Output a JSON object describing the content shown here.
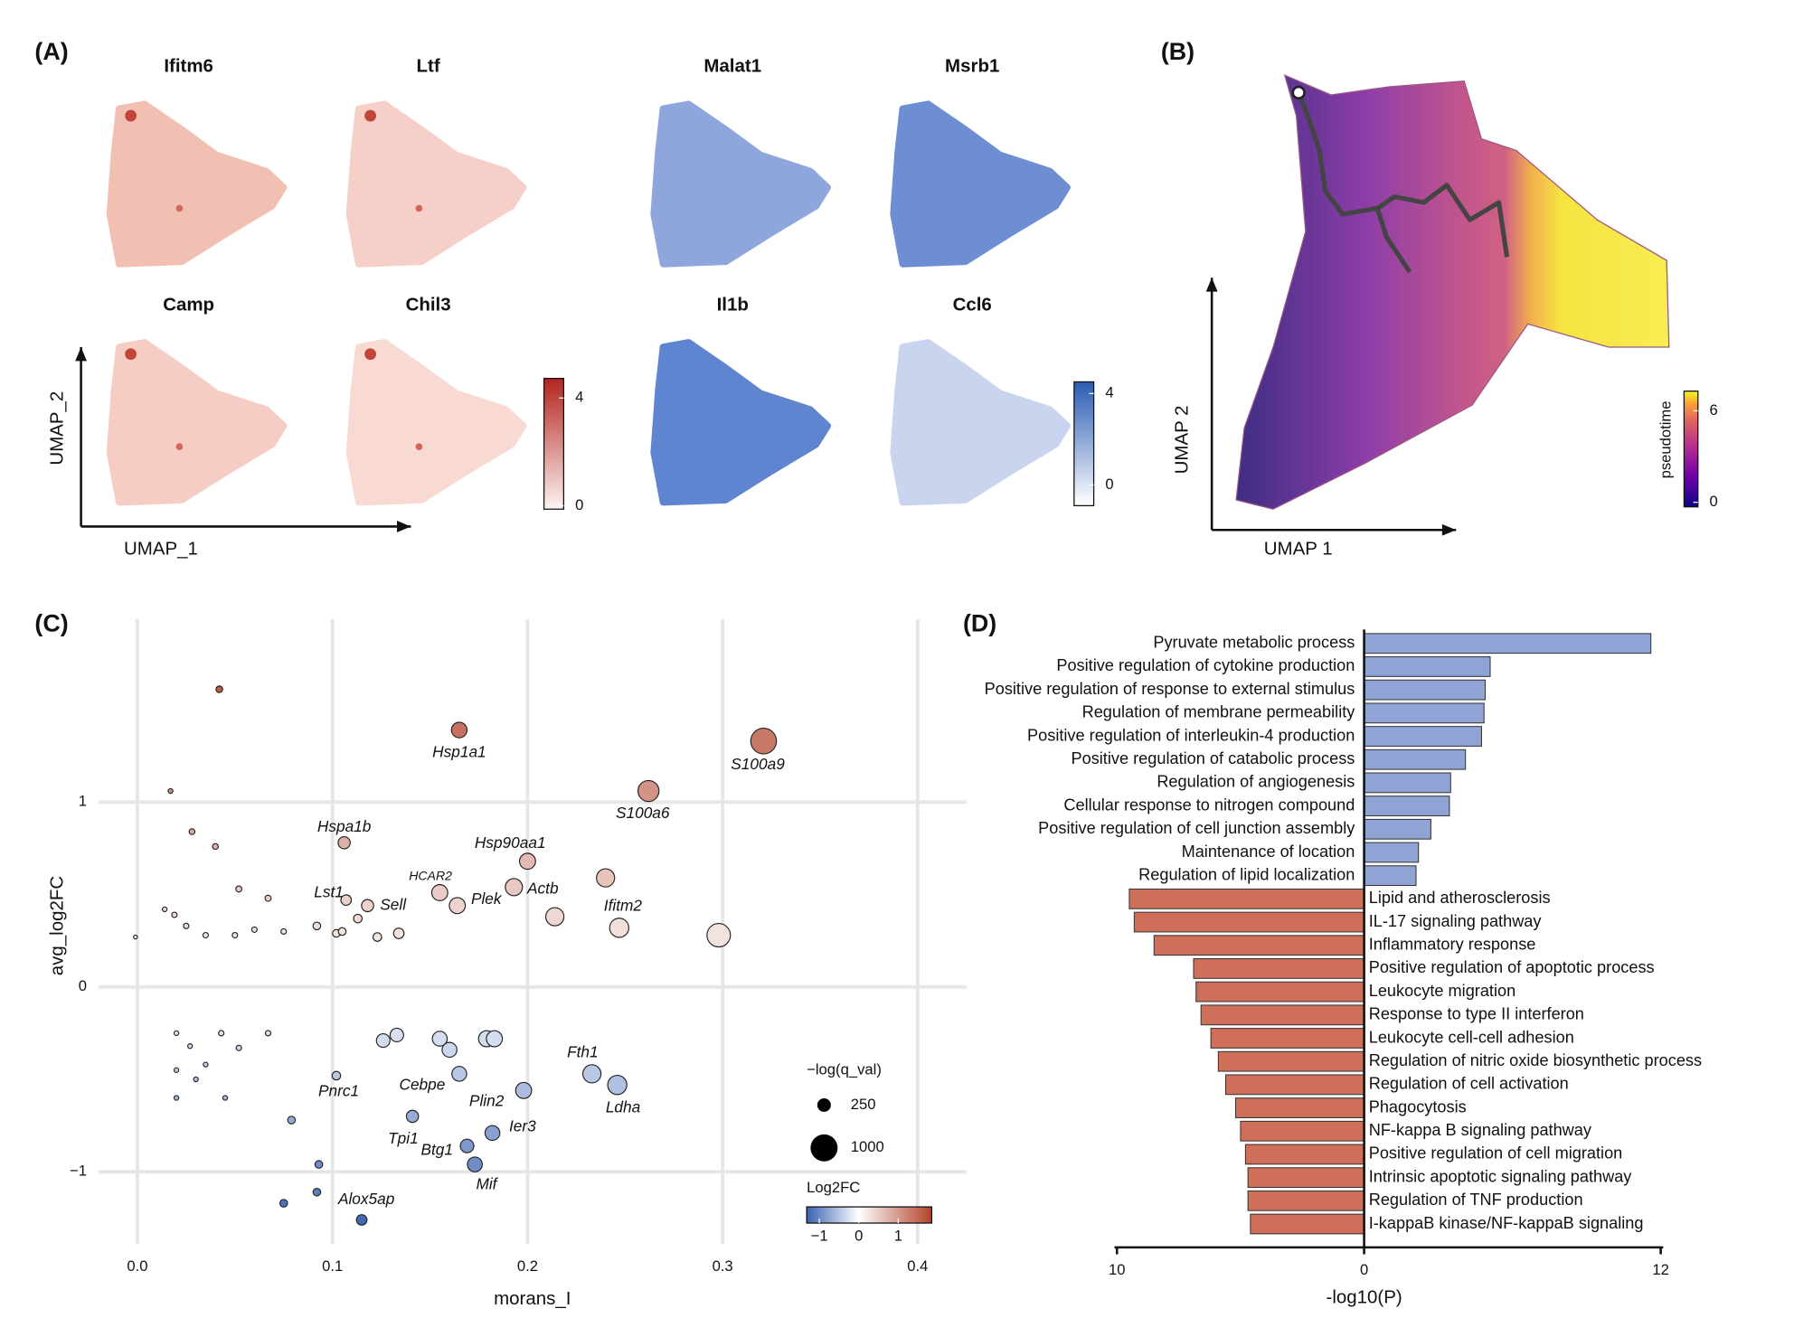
{
  "chart_data": [
    {
      "type": "embedding",
      "panel": "(A)",
      "xlabel": "UMAP_1",
      "ylabel": "UMAP_2",
      "features": [
        "Ifitm6",
        "Ltf",
        "Camp",
        "Chil3"
      ],
      "colors": [
        "#fdf3f1",
        "#b2251f"
      ],
      "colorbar_lim": [
        -0.13,
        4.73
      ],
      "colorbar_ticks": [
        0,
        4
      ]
    },
    {
      "type": "embedding",
      "features": [
        "Malat1",
        "Msrb1",
        "Il1b",
        "Ccl6"
      ],
      "colors": [
        "#ffffff",
        "#2b5cb3"
      ],
      "colorbar_lim": [
        -0.91,
        4.51
      ],
      "colorbar_ticks": [
        0,
        4
      ]
    },
    {
      "type": "trajectory",
      "panel": "(B)",
      "xlabel": "UMAP 1",
      "ylabel": "UMAP 2",
      "colorbar_title": "pseudotime",
      "colorbar_lim": [
        -0.3,
        7.29
      ],
      "colorbar_ticks": [
        0,
        6
      ]
    },
    {
      "type": "scatter",
      "panel": "(C)",
      "xlabel": "morans_I",
      "ylabel": "avg_log2FC",
      "xlim": [
        -0.02,
        0.425
      ],
      "ylim": [
        -1.39,
        1.99
      ],
      "xticks": [
        {
          "value": 0,
          "label": "0.0"
        },
        0.1,
        0.2,
        0.3,
        0.4
      ],
      "yticks": [
        {
          "value": -1,
          "label": "−1"
        },
        0,
        1
      ],
      "grid": true,
      "x": [
        0.042,
        0.165,
        0.321,
        0.262,
        0.017,
        0.028,
        0.04,
        0.106,
        0.2,
        0.155,
        0.164,
        0.193,
        0.24,
        0.107,
        0.118,
        0.214,
        0.247,
        0.298,
        -0.001,
        0.019,
        0.025,
        0.035,
        0.05,
        0.06,
        0.067,
        0.075,
        0.092,
        0.102,
        0.113,
        0.123,
        0.134,
        0.052,
        0.014,
        0.105,
        0.126,
        0.133,
        0.155,
        0.16,
        0.179,
        0.183,
        0.165,
        0.102,
        0.198,
        0.233,
        0.246,
        0.141,
        0.182,
        0.169,
        0.173,
        0.079,
        0.093,
        0.092,
        0.075,
        0.115,
        0.02,
        0.027,
        0.035,
        0.043,
        0.052,
        0.067,
        0.02,
        0.02,
        0.045,
        0.03
      ],
      "values": [
        1.61,
        1.39,
        1.33,
        1.06,
        1.06,
        0.84,
        0.76,
        0.78,
        0.68,
        0.51,
        0.44,
        0.54,
        0.59,
        0.47,
        0.44,
        0.38,
        0.32,
        0.28,
        0.27,
        0.39,
        0.33,
        0.28,
        0.28,
        0.31,
        0.48,
        0.3,
        0.33,
        0.29,
        0.37,
        0.27,
        0.29,
        0.53,
        0.42,
        0.3,
        -0.29,
        -0.26,
        -0.28,
        -0.34,
        -0.28,
        -0.28,
        -0.47,
        -0.48,
        -0.56,
        -0.47,
        -0.53,
        -0.7,
        -0.79,
        -0.86,
        -0.96,
        -0.72,
        -0.96,
        -1.11,
        -1.17,
        -1.26,
        -0.25,
        -0.32,
        -0.42,
        -0.25,
        -0.33,
        -0.25,
        -0.45,
        -0.6,
        -0.6,
        -0.5
      ],
      "sizes": [
        60,
        330,
        900,
        600,
        30,
        45,
        45,
        200,
        350,
        350,
        350,
        400,
        450,
        150,
        200,
        450,
        500,
        750,
        20,
        40,
        40,
        40,
        40,
        40,
        50,
        40,
        80,
        80,
        100,
        100,
        150,
        50,
        30,
        80,
        250,
        250,
        300,
        300,
        350,
        350,
        300,
        100,
        350,
        450,
        500,
        200,
        300,
        250,
        300,
        80,
        80,
        80,
        80,
        150,
        30,
        30,
        30,
        40,
        40,
        40,
        30,
        30,
        30,
        30
      ],
      "labels": [
        null,
        "Hsp1a1",
        "S100a9",
        "S100a6",
        null,
        null,
        null,
        "Hspa1b",
        "Hsp90aa1",
        "HCAR2",
        "Plek",
        "Actb",
        "Ifitm2",
        "Lst1",
        "Sell",
        null,
        null,
        null,
        null,
        null,
        null,
        null,
        null,
        null,
        null,
        null,
        null,
        null,
        null,
        null,
        null,
        null,
        null,
        null,
        null,
        null,
        null,
        null,
        null,
        null,
        "Cebpe",
        "Pnrc1",
        "Plin2",
        "Fth1",
        "Ldha",
        "Tpi1",
        "Ier3",
        "Btg1",
        "Mif",
        null,
        null,
        null,
        null,
        "Alox5ap",
        null,
        null,
        null,
        null,
        null,
        null,
        null,
        null,
        null,
        null
      ],
      "size_legend_title": "−log(q_val)",
      "size_legend": [
        250,
        1000
      ],
      "color_legend_title": "Log2FC",
      "color_lim": [
        -1.32,
        1.85
      ],
      "color_ticks": [
        {
          "value": -1,
          "label": "−1"
        },
        0,
        1
      ],
      "colors": [
        "#3a62b3",
        "#ffffff",
        "#b3432c"
      ]
    },
    {
      "type": "bar",
      "panel": "(D)",
      "xlabel": "-log10(P)",
      "xlim": [
        -10.1,
        12.1
      ],
      "xticks": [
        {
          "value": -10,
          "label": "10"
        },
        0,
        12
      ],
      "positive_color": "#8fa3d4",
      "negative_color": "#cf6f5a",
      "categories": [
        "Pyruvate metabolic process",
        "Positive regulation of cytokine production",
        "Positive regulation of response to external stimulus",
        "Regulation of membrane permeability",
        "Positive regulation of interleukin-4 production",
        "Positive regulation of catabolic process",
        "Regulation of angiogenesis",
        "Cellular response to nitrogen compound",
        "Positive regulation of cell junction assembly",
        "Maintenance of location",
        "Regulation of lipid localization",
        "Lipid and atherosclerosis",
        "IL-17 signaling pathway",
        "Inflammatory response",
        "Positive regulation of apoptotic process",
        "Leukocyte migration",
        "Response to type II interferon",
        "Leukocyte cell-cell adhesion",
        "Regulation of nitric oxide biosynthetic process",
        "Regulation of cell activation",
        "Phagocytosis",
        "NF-kappa B signaling pathway",
        "Positive regulation of cell migration",
        "Intrinsic apoptotic signaling pathway",
        "Regulation of TNF production",
        "I-kappaB kinase/NF-kappaB signaling"
      ],
      "values": [
        11.6,
        5.1,
        4.9,
        4.85,
        4.75,
        4.1,
        3.5,
        3.45,
        2.7,
        2.2,
        2.1,
        -9.5,
        -9.3,
        -8.5,
        -6.9,
        -6.8,
        -6.6,
        -6.2,
        -5.9,
        -5.6,
        -5.2,
        -5.0,
        -4.8,
        -4.7,
        -4.7,
        -4.6
      ]
    }
  ]
}
